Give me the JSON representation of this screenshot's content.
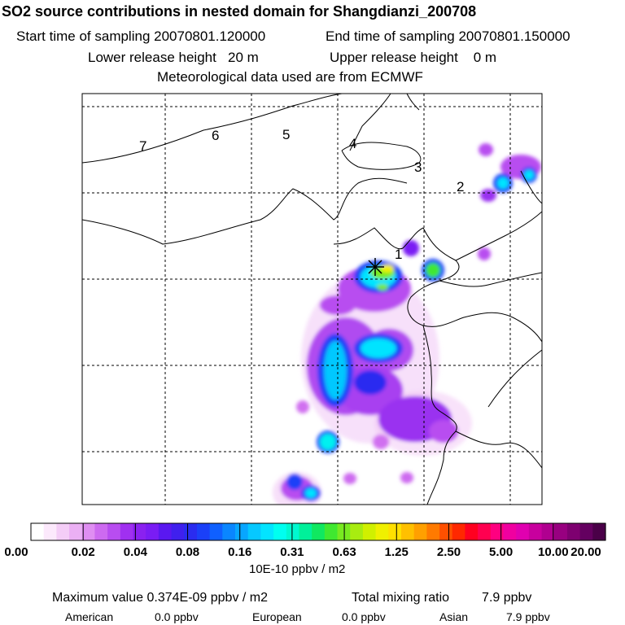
{
  "header": {
    "title": "SO2 source contributions in nested domain for Shangdianzi_200708",
    "start_time": "Start time of sampling 20070801.120000",
    "end_time": "End time of sampling 20070801.150000",
    "lower_release": "Lower release height   20 m",
    "upper_release": "Upper release height    0 m",
    "met_source": "Meteorological data used are from ECMWF"
  },
  "chart_data": {
    "type": "heatmap",
    "title": "SO2 source contributions in nested domain for Shangdianzi_200708",
    "colorbar": {
      "tick_labels": [
        "0.00",
        "0.02",
        "0.04",
        "0.08",
        "0.16",
        "0.31",
        "0.63",
        "1.25",
        "2.50",
        "5.00",
        "10.00",
        "20.00"
      ],
      "units": "10E-10 ppbv / m2",
      "colors": [
        "#ffffff",
        "#fce9fc",
        "#f4cdf7",
        "#ebb0f4",
        "#df8ef2",
        "#cd6af0",
        "#b84df0",
        "#a030f0",
        "#8a21f0",
        "#7a1cf4",
        "#5a18f0",
        "#4020ee",
        "#2a2cf0",
        "#1a40f8",
        "#0f60ff",
        "#0a86ff",
        "#08a6ff",
        "#06c8ff",
        "#03e4ff",
        "#00fff0",
        "#00f8d0",
        "#00f09a",
        "#10e860",
        "#40e830",
        "#78ea20",
        "#a8ec10",
        "#d0f000",
        "#f0f000",
        "#ffe000",
        "#ffc000",
        "#ffa000",
        "#ff7a00",
        "#ff5000",
        "#ff2800",
        "#ff0020",
        "#ff0050",
        "#ff0080",
        "#f000a0",
        "#e000b0",
        "#c8009e",
        "#b00090",
        "#980080",
        "#7e0070",
        "#640060",
        "#4a0048"
      ]
    },
    "region_labels": [
      "7",
      "6",
      "5",
      "4",
      "3",
      "2",
      "1"
    ],
    "source_marker": "Shangdianzi",
    "max_value": "0.374E-09",
    "max_units": "ppbv / m2",
    "total_mixing_ratio": "7.9 ppbv",
    "contributions": [
      {
        "region": "American",
        "value": "0.0 ppbv"
      },
      {
        "region": "European",
        "value": "0.0 ppbv"
      },
      {
        "region": "Asian",
        "value": "7.9 ppbv"
      }
    ]
  },
  "footer": {
    "max_label": "Maximum value  0.374E-09 ppbv / m2",
    "total_label": "Total mixing ratio",
    "total_value": "7.9 ppbv",
    "american_label": "American",
    "american_value": "0.0 ppbv",
    "european_label": "European",
    "european_value": "0.0 ppbv",
    "asian_label": "Asian",
    "asian_value": "7.9 ppbv"
  }
}
